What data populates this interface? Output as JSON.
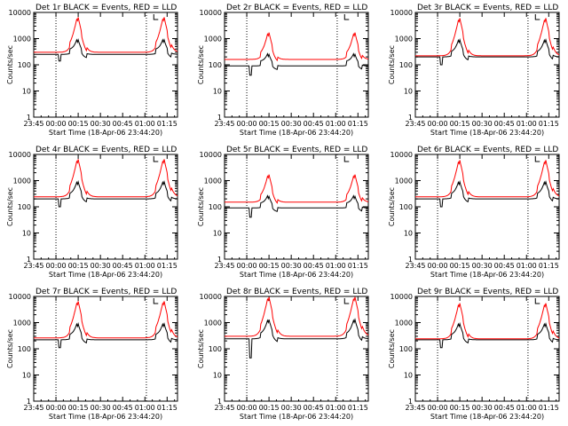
{
  "figure_title": "",
  "chart_data": [
    {
      "type": "line",
      "title": "Det 1r BLACK = Events, RED = LLD",
      "xlabel": "Start Time (18-Apr-06 23:44:20)",
      "ylabel": "Counts/sec",
      "yscale": "log",
      "ylim": [
        1,
        10000
      ],
      "y_ticks": [
        "1",
        "10",
        "100",
        "1000",
        "10000"
      ],
      "x_ticks": [
        "23:45",
        "00:00",
        "00:15",
        "00:30",
        "00:45",
        "01:00",
        "01:15"
      ],
      "grid": false,
      "series": [
        {
          "color": "#000000",
          "baseline": 250,
          "peak": 900,
          "dip": 140
        },
        {
          "color": "#ff0000",
          "baseline": 300,
          "peak": 6500,
          "dip": 0
        }
      ]
    },
    {
      "type": "line",
      "title": "Det 2r BLACK = Events, RED = LLD",
      "xlabel": "Start Time (18-Apr-06 23:44:20)",
      "ylabel": "Counts/sec",
      "yscale": "log",
      "ylim": [
        1,
        10000
      ],
      "y_ticks": [
        "1",
        "10",
        "100",
        "1000",
        "10000"
      ],
      "x_ticks": [
        "23:45",
        "00:00",
        "00:15",
        "00:30",
        "00:45",
        "01:00",
        "01:15"
      ],
      "grid": false,
      "series": [
        {
          "color": "#000000",
          "baseline": 90,
          "peak": 250,
          "dip": 40
        },
        {
          "color": "#ff0000",
          "baseline": 160,
          "peak": 1700,
          "dip": 0
        }
      ]
    },
    {
      "type": "line",
      "title": "Det 3r BLACK = Events, RED = LLD",
      "xlabel": "Start Time (18-Apr-06 23:44:20)",
      "ylabel": "Counts/sec",
      "yscale": "log",
      "ylim": [
        1,
        10000
      ],
      "y_ticks": [
        "1",
        "10",
        "100",
        "1000",
        "10000"
      ],
      "x_ticks": [
        "23:45",
        "00:00",
        "00:15",
        "00:30",
        "00:45",
        "01:00",
        "01:15"
      ],
      "grid": false,
      "series": [
        {
          "color": "#000000",
          "baseline": 200,
          "peak": 900,
          "dip": 100
        },
        {
          "color": "#ff0000",
          "baseline": 220,
          "peak": 6000,
          "dip": 0
        }
      ]
    },
    {
      "type": "line",
      "title": "Det 4r BLACK = Events, RED = LLD",
      "xlabel": "Start Time (18-Apr-06 23:44:20)",
      "ylabel": "Counts/sec",
      "yscale": "log",
      "ylim": [
        1,
        10000
      ],
      "y_ticks": [
        "1",
        "10",
        "100",
        "1000",
        "10000"
      ],
      "x_ticks": [
        "23:45",
        "00:00",
        "00:15",
        "00:30",
        "00:45",
        "01:00",
        "01:15"
      ],
      "grid": false,
      "series": [
        {
          "color": "#000000",
          "baseline": 200,
          "peak": 900,
          "dip": 100
        },
        {
          "color": "#ff0000",
          "baseline": 240,
          "peak": 6500,
          "dip": 0
        }
      ]
    },
    {
      "type": "line",
      "title": "Det 5r BLACK = Events, RED = LLD",
      "xlabel": "Start Time (18-Apr-06 23:44:20)",
      "ylabel": "Counts/sec",
      "yscale": "log",
      "ylim": [
        1,
        10000
      ],
      "y_ticks": [
        "1",
        "10",
        "100",
        "1000",
        "10000"
      ],
      "x_ticks": [
        "23:45",
        "00:00",
        "00:15",
        "00:30",
        "00:45",
        "01:00",
        "01:15"
      ],
      "grid": false,
      "series": [
        {
          "color": "#000000",
          "baseline": 90,
          "peak": 250,
          "dip": 40
        },
        {
          "color": "#ff0000",
          "baseline": 150,
          "peak": 1700,
          "dip": 0
        }
      ]
    },
    {
      "type": "line",
      "title": "Det 6r BLACK = Events, RED = LLD",
      "xlabel": "Start Time (18-Apr-06 23:44:20)",
      "ylabel": "Counts/sec",
      "yscale": "log",
      "ylim": [
        1,
        10000
      ],
      "y_ticks": [
        "1",
        "10",
        "100",
        "1000",
        "10000"
      ],
      "x_ticks": [
        "23:45",
        "00:00",
        "00:15",
        "00:30",
        "00:45",
        "01:00",
        "01:15"
      ],
      "grid": false,
      "series": [
        {
          "color": "#000000",
          "baseline": 200,
          "peak": 900,
          "dip": 100
        },
        {
          "color": "#ff0000",
          "baseline": 240,
          "peak": 6000,
          "dip": 0
        }
      ]
    },
    {
      "type": "line",
      "title": "Det 7r BLACK = Events, RED = LLD",
      "xlabel": "Start Time (18-Apr-06 23:44:20)",
      "ylabel": "Counts/sec",
      "yscale": "log",
      "ylim": [
        1,
        10000
      ],
      "y_ticks": [
        "1",
        "10",
        "100",
        "1000",
        "10000"
      ],
      "x_ticks": [
        "23:45",
        "00:00",
        "00:15",
        "00:30",
        "00:45",
        "01:00",
        "01:15"
      ],
      "grid": false,
      "series": [
        {
          "color": "#000000",
          "baseline": 220,
          "peak": 900,
          "dip": 110
        },
        {
          "color": "#ff0000",
          "baseline": 260,
          "peak": 6500,
          "dip": 0
        }
      ]
    },
    {
      "type": "line",
      "title": "Det 8r BLACK = Events, RED = LLD",
      "xlabel": "Start Time (18-Apr-06 23:44:20)",
      "ylabel": "Counts/sec",
      "yscale": "log",
      "ylim": [
        1,
        10000
      ],
      "y_ticks": [
        "1",
        "10",
        "100",
        "1000",
        "10000"
      ],
      "x_ticks": [
        "23:45",
        "00:00",
        "00:15",
        "00:30",
        "00:45",
        "01:00",
        "01:15"
      ],
      "grid": false,
      "series": [
        {
          "color": "#000000",
          "baseline": 240,
          "peak": 1300,
          "dip": 45
        },
        {
          "color": "#ff0000",
          "baseline": 300,
          "peak": 9500,
          "dip": 0
        }
      ]
    },
    {
      "type": "line",
      "title": "Det 9r BLACK = Events, RED = LLD",
      "xlabel": "Start Time (18-Apr-06 23:44:20)",
      "ylabel": "Counts/sec",
      "yscale": "log",
      "ylim": [
        1,
        10000
      ],
      "y_ticks": [
        "1",
        "10",
        "100",
        "1000",
        "10000"
      ],
      "x_ticks": [
        "23:45",
        "00:00",
        "00:15",
        "00:30",
        "00:45",
        "01:00",
        "01:15"
      ],
      "grid": false,
      "series": [
        {
          "color": "#000000",
          "baseline": 220,
          "peak": 900,
          "dip": 110
        },
        {
          "color": "#ff0000",
          "baseline": 240,
          "peak": 5500,
          "dip": 0
        }
      ]
    }
  ]
}
